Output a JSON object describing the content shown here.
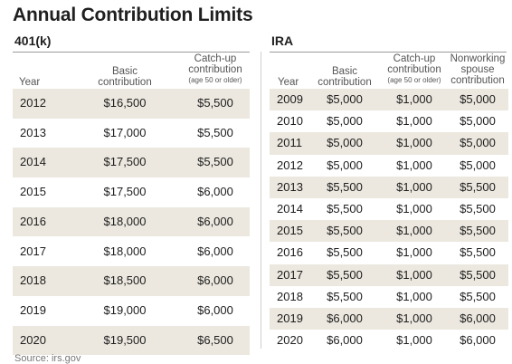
{
  "title": "Annual Contribution Limits",
  "k401": {
    "heading": "401(k)",
    "columns": {
      "year": "Year",
      "basic_line1": "Basic",
      "basic_line2": "contribution",
      "catch_line1": "Catch-up",
      "catch_line2": "contribution",
      "catch_line3": "(age 50 or older)"
    },
    "rows": [
      {
        "year": "2012",
        "basic": "$16,500",
        "catchup": "$5,500"
      },
      {
        "year": "2013",
        "basic": "$17,000",
        "catchup": "$5,500"
      },
      {
        "year": "2014",
        "basic": "$17,500",
        "catchup": "$5,500"
      },
      {
        "year": "2015",
        "basic": "$17,500",
        "catchup": "$6,000"
      },
      {
        "year": "2016",
        "basic": "$18,000",
        "catchup": "$6,000"
      },
      {
        "year": "2017",
        "basic": "$18,000",
        "catchup": "$6,000"
      },
      {
        "year": "2018",
        "basic": "$18,500",
        "catchup": "$6,000"
      },
      {
        "year": "2019",
        "basic": "$19,000",
        "catchup": "$6,000"
      },
      {
        "year": "2020",
        "basic": "$19,500",
        "catchup": "$6,500"
      }
    ]
  },
  "ira": {
    "heading": "IRA",
    "columns": {
      "year": "Year",
      "basic_line1": "Basic",
      "basic_line2": "contribution",
      "catch_line1": "Catch-up",
      "catch_line2": "contribution",
      "catch_line3": "(age 50 or older)",
      "spouse_line1": "Nonworking",
      "spouse_line2": "spouse",
      "spouse_line3": "contribution"
    },
    "rows": [
      {
        "year": "2009",
        "basic": "$5,000",
        "catchup": "$1,000",
        "spouse": "$5,000"
      },
      {
        "year": "2010",
        "basic": "$5,000",
        "catchup": "$1,000",
        "spouse": "$5,000"
      },
      {
        "year": "2011",
        "basic": "$5,000",
        "catchup": "$1,000",
        "spouse": "$5,000"
      },
      {
        "year": "2012",
        "basic": "$5,000",
        "catchup": "$1,000",
        "spouse": "$5,000"
      },
      {
        "year": "2013",
        "basic": "$5,500",
        "catchup": "$1,000",
        "spouse": "$5,500"
      },
      {
        "year": "2014",
        "basic": "$5,500",
        "catchup": "$1,000",
        "spouse": "$5,500"
      },
      {
        "year": "2015",
        "basic": "$5,500",
        "catchup": "$1,000",
        "spouse": "$5,500"
      },
      {
        "year": "2016",
        "basic": "$5,500",
        "catchup": "$1,000",
        "spouse": "$5,500"
      },
      {
        "year": "2017",
        "basic": "$5,500",
        "catchup": "$1,000",
        "spouse": "$5,500"
      },
      {
        "year": "2018",
        "basic": "$5,500",
        "catchup": "$1,000",
        "spouse": "$5,500"
      },
      {
        "year": "2019",
        "basic": "$6,000",
        "catchup": "$1,000",
        "spouse": "$6,000"
      },
      {
        "year": "2020",
        "basic": "$6,000",
        "catchup": "$1,000",
        "spouse": "$6,000"
      }
    ]
  },
  "source": "Source: irs.gov",
  "colors": {
    "row_shade": "#ece8df",
    "rule": "#9a9a9a"
  }
}
